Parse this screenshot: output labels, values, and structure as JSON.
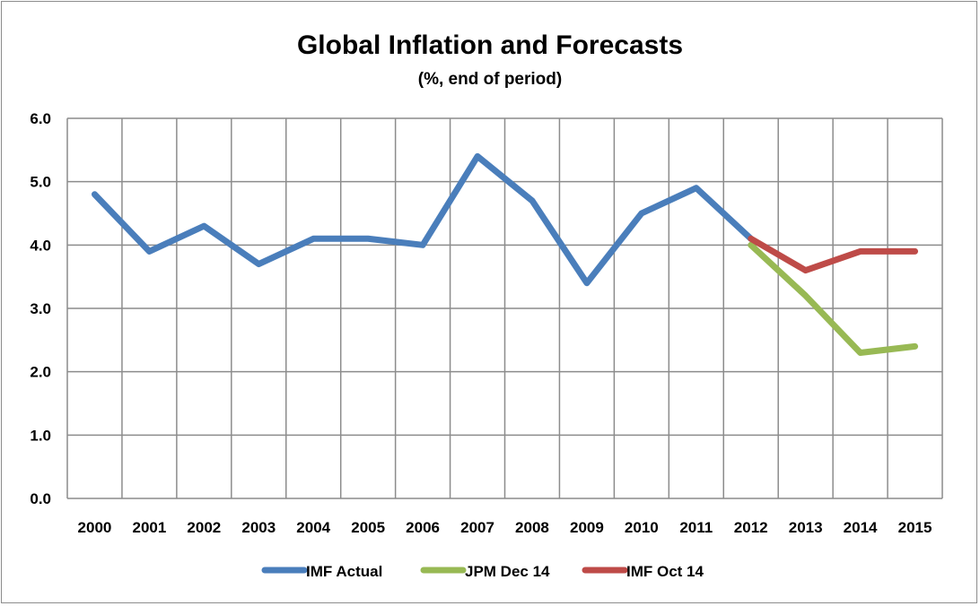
{
  "chart_data": {
    "type": "line",
    "title": "Global Inflation and Forecasts",
    "subtitle": "(%, end of period)",
    "categories": [
      "2000",
      "2001",
      "2002",
      "2003",
      "2004",
      "2005",
      "2006",
      "2007",
      "2008",
      "2009",
      "2010",
      "2011",
      "2012",
      "2013",
      "2014",
      "2015"
    ],
    "y_ticks": [
      "0.0",
      "1.0",
      "2.0",
      "3.0",
      "4.0",
      "5.0",
      "6.0"
    ],
    "ylim": [
      0,
      6
    ],
    "grid": true,
    "legend_position": "bottom",
    "series": [
      {
        "name": "IMF Actual",
        "color": "#4a7ebb",
        "values": [
          4.8,
          3.9,
          4.3,
          3.7,
          4.1,
          4.1,
          4.0,
          5.4,
          4.7,
          3.4,
          4.5,
          4.9,
          4.1,
          null,
          null,
          null
        ]
      },
      {
        "name": "JPM Dec 14",
        "color": "#98b954",
        "values": [
          null,
          null,
          null,
          null,
          null,
          null,
          null,
          null,
          null,
          null,
          null,
          null,
          4.0,
          3.2,
          2.3,
          2.4
        ]
      },
      {
        "name": "IMF Oct 14",
        "color": "#be4b48",
        "values": [
          null,
          null,
          null,
          null,
          null,
          null,
          null,
          null,
          null,
          null,
          null,
          null,
          4.1,
          3.6,
          3.9,
          3.9
        ]
      }
    ]
  }
}
